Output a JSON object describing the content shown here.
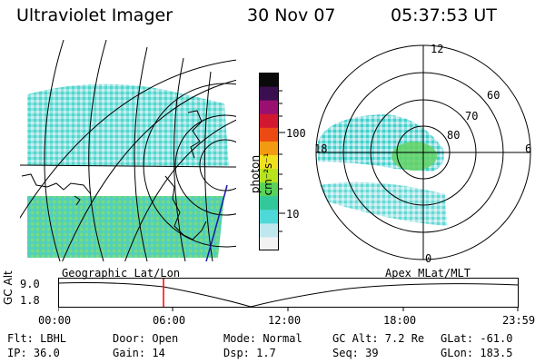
{
  "header": {
    "instrument": "Ultraviolet Imager",
    "date": "30 Nov 07",
    "time": "05:37:53 UT"
  },
  "colorbar": {
    "unit_label": "photon cm⁻²s⁻¹",
    "tick_100": "100",
    "tick_10": "10",
    "colors": [
      "#f2f2f2",
      "#bfe8ee",
      "#4fd8d8",
      "#33c89a",
      "#5ad25a",
      "#b6e31e",
      "#f0e020",
      "#f29a12",
      "#ec4a12",
      "#d11830",
      "#9a1070",
      "#3a0f4f",
      "#0a0a0a"
    ]
  },
  "panels": {
    "left_caption": "Geographic Lat/Lon",
    "right_caption": "Apex MLat/MLT",
    "polar_labels": {
      "mlt_12": "12",
      "mlt_18": "18",
      "mlt_6": "6",
      "mlt_0": "0",
      "lat_60": "60",
      "lat_70": "70",
      "lat_80": "80"
    }
  },
  "altitude_plot": {
    "ylabel": "GC Alt",
    "ymax_label": "9.0",
    "ymin_label": "1.8",
    "xticks": [
      "00:00",
      "06:00",
      "12:00",
      "18:00",
      "23:59"
    ],
    "marker_color": "#ff0000"
  },
  "status": {
    "filter": "Flt: LBHL",
    "door": "Door: Open",
    "mode": "Mode: Normal",
    "gc_alt": "GC Alt: 7.2 Re",
    "glat": "GLat: -61.0",
    "ip": "IP: 36.0",
    "gain": "Gain: 14",
    "dsp": "Dsp:    1.7",
    "seq": "Seq: 39",
    "glon": "GLon: 183.5"
  }
}
